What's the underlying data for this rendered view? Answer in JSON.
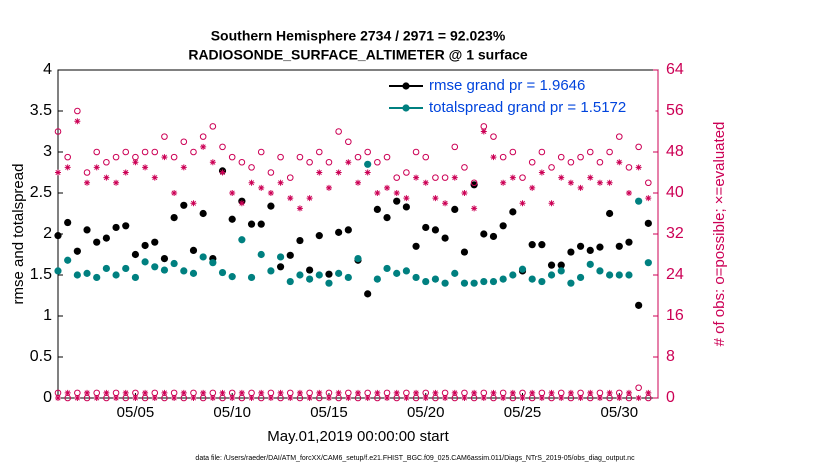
{
  "chart_data": {
    "type": "scatter",
    "title": "Southern Hemisphere 2734 / 2971 = 92.023%",
    "subtitle": "RADIOSONDE_SURFACE_ALTIMETER @ 1 surface",
    "x_label": "May.01,2019 00:00:00 start",
    "y_label": "rmse and totalspread",
    "y2_label": "# of obs: o=possible; ×=evaluated",
    "footnote": "data file: /Users/raeder/DAI/ATM_forcXX/CAM6_setup/f.e21.FHIST_BGC.f09_025.CAM6assim.011/Diags_NTrS_2019-05/obs_diag_output.nc",
    "x": [
      1,
      1.5,
      2,
      2.5,
      3,
      3.5,
      4,
      4.5,
      5,
      5.5,
      6,
      6.5,
      7,
      7.5,
      8,
      8.5,
      9,
      9.5,
      10,
      10.5,
      11,
      11.5,
      12,
      12.5,
      13,
      13.5,
      14,
      14.5,
      15,
      15.5,
      16,
      16.5,
      17,
      17.5,
      18,
      18.5,
      19,
      19.5,
      20,
      20.5,
      21,
      21.5,
      22,
      22.5,
      23,
      23.5,
      24,
      24.5,
      25,
      25.5,
      26,
      26.5,
      27,
      27.5,
      28,
      28.5,
      29,
      29.5,
      30,
      30.5,
      31,
      31.5
    ],
    "xlim": [
      1,
      32
    ],
    "xticks": [
      {
        "value": 5,
        "label": "05/05"
      },
      {
        "value": 10,
        "label": "05/10"
      },
      {
        "value": 15,
        "label": "05/15"
      },
      {
        "value": 20,
        "label": "05/20"
      },
      {
        "value": 25,
        "label": "05/25"
      },
      {
        "value": 30,
        "label": "05/30"
      }
    ],
    "ylim": [
      0,
      4
    ],
    "yticks": [
      0,
      0.5,
      1,
      1.5,
      2,
      2.5,
      3,
      3.5,
      4
    ],
    "y2lim": [
      0,
      64
    ],
    "y2ticks": [
      0,
      8,
      16,
      24,
      32,
      40,
      48,
      56,
      64
    ],
    "series": [
      {
        "name": "rmse grand pr = 1.9646",
        "color": "#000000",
        "marker": "dot",
        "values": [
          1.98,
          2.14,
          1.79,
          2.05,
          1.9,
          1.95,
          2.08,
          2.1,
          1.75,
          1.86,
          1.9,
          1.7,
          2.2,
          2.35,
          1.8,
          2.25,
          1.7,
          2.77,
          2.18,
          2.4,
          2.12,
          2.12,
          2.34,
          1.6,
          1.74,
          1.92,
          1.56,
          1.98,
          1.51,
          2.02,
          2.05,
          1.68,
          1.27,
          2.3,
          2.2,
          2.4,
          2.33,
          1.85,
          2.08,
          2.05,
          1.95,
          2.3,
          1.78,
          2.6,
          2.0,
          1.97,
          2.1,
          2.27,
          1.55,
          1.87,
          1.87,
          1.62,
          1.62,
          1.78,
          1.85,
          1.8,
          1.84,
          2.25,
          1.85,
          1.9,
          1.13,
          2.13
        ]
      },
      {
        "name": "totalspread grand pr = 1.5172",
        "color": "#008080",
        "marker": "dot",
        "values": [
          1.55,
          1.68,
          1.5,
          1.52,
          1.47,
          1.58,
          1.5,
          1.58,
          1.47,
          1.66,
          1.6,
          1.56,
          1.64,
          1.55,
          1.52,
          1.72,
          1.65,
          1.53,
          1.48,
          1.93,
          1.47,
          1.75,
          1.55,
          1.72,
          1.42,
          1.5,
          1.45,
          1.5,
          1.4,
          1.52,
          1.47,
          1.7,
          2.85,
          1.45,
          1.58,
          1.52,
          1.55,
          1.47,
          1.42,
          1.45,
          1.4,
          1.52,
          1.4,
          1.4,
          1.42,
          1.42,
          1.45,
          1.5,
          1.57,
          1.45,
          1.42,
          1.5,
          1.55,
          1.4,
          1.47,
          1.63,
          1.55,
          1.5,
          1.5,
          1.5,
          2.4,
          1.65
        ]
      },
      {
        "color": "#cc0055",
        "marker": "circle",
        "axis": "y2",
        "values": [
          52,
          47,
          56,
          44,
          48,
          46,
          47,
          48,
          47,
          48,
          48,
          51,
          47,
          50,
          48,
          51,
          53,
          49,
          47,
          46,
          45,
          48,
          44,
          47,
          43,
          47,
          46,
          48,
          46,
          52,
          50,
          47,
          48,
          46,
          47,
          43,
          44,
          48,
          47,
          43,
          43,
          49,
          45,
          42,
          53,
          51,
          47,
          48,
          43,
          46,
          48,
          45,
          47,
          46,
          47,
          48,
          46,
          48,
          51,
          45,
          49,
          42
        ]
      },
      {
        "color": "#cc0055",
        "marker": "star",
        "axis": "y2",
        "values": [
          44,
          45,
          54,
          42,
          45,
          43,
          42,
          44,
          46,
          45,
          43,
          47,
          40,
          45,
          38,
          49,
          46,
          44,
          40,
          38,
          42,
          41,
          40,
          42,
          39,
          37,
          39,
          44,
          41,
          44,
          46,
          42,
          44,
          40,
          41,
          40,
          39,
          43,
          42,
          39,
          38,
          43,
          40,
          37,
          52,
          47,
          42,
          43,
          38,
          41,
          44,
          38,
          43,
          42,
          41,
          43,
          42,
          42,
          46,
          40,
          45,
          39
        ]
      },
      {
        "color": "#cc0055",
        "marker": "circle",
        "axis": "y2",
        "values": [
          1,
          0,
          1,
          0,
          1,
          0,
          1,
          0,
          1,
          0,
          1,
          0,
          1,
          0,
          1,
          0,
          1,
          0,
          1,
          0,
          1,
          0,
          1,
          0,
          1,
          0,
          1,
          0,
          1,
          0,
          1,
          0,
          1,
          0,
          1,
          0,
          1,
          0,
          1,
          0,
          1,
          0,
          1,
          0,
          1,
          0,
          1,
          0,
          1,
          0,
          1,
          0,
          1,
          0,
          1,
          0,
          1,
          0,
          1,
          0,
          2,
          0
        ]
      },
      {
        "color": "#cc0055",
        "marker": "star",
        "axis": "y2",
        "values": [
          0,
          1,
          0,
          1,
          0,
          1,
          0,
          1,
          0,
          1,
          0,
          1,
          0,
          1,
          0,
          1,
          0,
          1,
          0,
          1,
          0,
          1,
          0,
          1,
          0,
          1,
          0,
          1,
          0,
          1,
          0,
          1,
          0,
          1,
          0,
          1,
          0,
          1,
          0,
          1,
          0,
          1,
          0,
          1,
          0,
          1,
          0,
          1,
          0,
          1,
          0,
          1,
          0,
          1,
          0,
          1,
          0,
          1,
          0,
          1,
          0,
          1
        ]
      }
    ],
    "legend": "upper right",
    "legend_text_color": "#0044dd"
  }
}
